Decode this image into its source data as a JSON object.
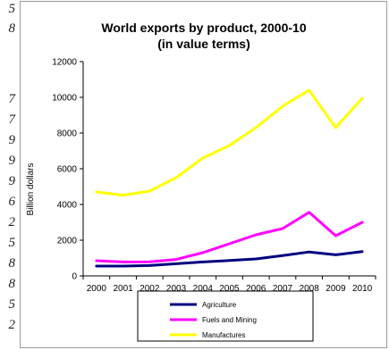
{
  "left_strip": {
    "glyphs": [
      "5",
      "8",
      "7",
      "7",
      "9",
      "9",
      "9",
      "6",
      "2",
      "5",
      "8",
      "8",
      "5",
      "2"
    ]
  },
  "chart_data": {
    "type": "line",
    "title": "World exports by product, 2000-10",
    "subtitle": "(in value terms)",
    "xlabel": "",
    "ylabel": "Billion dollars",
    "x": [
      "2000",
      "2001",
      "2002",
      "2003",
      "2004",
      "2005",
      "2006",
      "2007",
      "2008",
      "2009",
      "2010"
    ],
    "ylim": [
      0,
      12000
    ],
    "yticks": [
      0,
      2000,
      4000,
      6000,
      8000,
      10000,
      12000
    ],
    "grid": false,
    "legend_position": "bottom",
    "series": [
      {
        "name": "Agriculture",
        "color": "#000080",
        "values": [
          550,
          550,
          580,
          680,
          780,
          860,
          950,
          1140,
          1340,
          1180,
          1360
        ]
      },
      {
        "name": "Fuels and Mining",
        "color": "#ff00ff",
        "values": [
          850,
          780,
          790,
          920,
          1300,
          1800,
          2300,
          2650,
          3560,
          2250,
          3000
        ]
      },
      {
        "name": "Manufactures",
        "color": "#ffff00",
        "values": [
          4700,
          4520,
          4750,
          5500,
          6600,
          7300,
          8300,
          9500,
          10400,
          8300,
          9950
        ]
      }
    ]
  }
}
